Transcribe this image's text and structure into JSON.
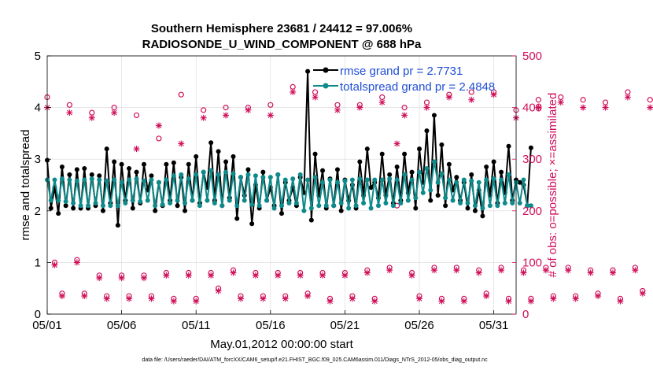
{
  "chart_data": {
    "type": "line",
    "title": "Southern Hemisphere 23681 / 24412 = 97.006%",
    "subtitle": "RADIOSONDE_U_WIND_COMPONENT @ 688 hPa",
    "xlabel": "May.01,2012 00:00:00 start",
    "ylabel": "rmse and totalspread",
    "y2label": "# of obs: o=possible; ×=assimilated",
    "x_ticks": [
      "05/01",
      "05/06",
      "05/11",
      "05/16",
      "05/21",
      "05/26",
      "05/31"
    ],
    "y_ticks": [
      "0",
      "1",
      "2",
      "3",
      "4",
      "5"
    ],
    "y2_ticks": [
      "0",
      "100",
      "200",
      "300",
      "400",
      "500"
    ],
    "xlim": [
      0,
      31.5
    ],
    "ylim": [
      0,
      5
    ],
    "y2lim": [
      0,
      500
    ],
    "grid": true,
    "legend_location": "top-right",
    "colors": {
      "rmse": "#000000",
      "spread": "#0e8a8a",
      "obs": "#d0105a",
      "legend_text": "#1f4fd6"
    },
    "series": [
      {
        "name": "rmse grand pr = 2.7731",
        "axis": "left",
        "x_start": 0,
        "dx": 0.25,
        "values": [
          2.98,
          2.05,
          2.45,
          1.95,
          2.85,
          2.1,
          2.7,
          2.05,
          2.8,
          2.05,
          2.82,
          2.05,
          2.7,
          2.1,
          2.68,
          2.0,
          3.2,
          2.15,
          2.95,
          1.72,
          2.9,
          2.2,
          2.82,
          2.05,
          2.75,
          2.15,
          2.9,
          2.4,
          2.68,
          2.0,
          2.55,
          2.1,
          2.9,
          2.2,
          2.93,
          2.1,
          2.65,
          2.0,
          2.9,
          2.2,
          3.05,
          2.15,
          2.75,
          2.45,
          3.32,
          2.2,
          3.15,
          2.1,
          2.95,
          2.25,
          3.05,
          1.85,
          2.65,
          2.3,
          2.8,
          1.75,
          2.5,
          2.05,
          2.75,
          2.2,
          2.45,
          2.1,
          2.7,
          1.95,
          2.55,
          2.2,
          2.45,
          2.1,
          2.65,
          2.35,
          4.7,
          1.82,
          3.1,
          2.3,
          2.78,
          2.05,
          2.62,
          2.1,
          2.8,
          2.0,
          2.6,
          2.2,
          2.5,
          2.05,
          2.95,
          2.3,
          3.2,
          2.45,
          2.55,
          2.25,
          3.1,
          2.3,
          2.7,
          2.15,
          2.85,
          2.2,
          3.1,
          2.35,
          2.75,
          2.05,
          3.2,
          2.55,
          3.55,
          2.2,
          3.85,
          2.3,
          3.28,
          2.1,
          2.9,
          2.4,
          2.65,
          2.2,
          2.55,
          2.05,
          2.7,
          2.0,
          2.4,
          1.9,
          2.85,
          2.3,
          2.95,
          2.15,
          2.75,
          2.35,
          3.25,
          2.2,
          2.6,
          2.55,
          2.5,
          2.1,
          3.22
        ]
      },
      {
        "name": "totalspread grand pr = 2.4848",
        "axis": "left",
        "x_start": 0,
        "dx": 0.25,
        "values": [
          2.6,
          2.2,
          2.6,
          2.2,
          2.62,
          2.18,
          2.6,
          2.15,
          2.58,
          2.1,
          2.6,
          2.1,
          2.62,
          2.15,
          2.6,
          2.1,
          2.58,
          2.1,
          2.6,
          2.1,
          2.55,
          2.15,
          2.6,
          2.2,
          2.62,
          2.18,
          2.58,
          2.2,
          2.6,
          2.1,
          2.55,
          2.12,
          2.6,
          2.15,
          2.68,
          2.2,
          2.7,
          2.15,
          2.62,
          2.2,
          2.7,
          2.1,
          2.75,
          2.2,
          2.78,
          2.15,
          2.7,
          2.1,
          2.75,
          2.2,
          2.72,
          2.1,
          2.65,
          2.2,
          2.7,
          2.12,
          2.68,
          2.1,
          2.65,
          2.2,
          2.65,
          2.05,
          2.7,
          2.1,
          2.6,
          2.15,
          2.62,
          2.15,
          2.7,
          2.0,
          2.6,
          2.05,
          2.65,
          2.1,
          2.55,
          2.1,
          2.6,
          2.1,
          2.55,
          2.15,
          2.58,
          2.05,
          2.6,
          2.1,
          2.62,
          2.15,
          2.6,
          2.05,
          2.6,
          2.1,
          2.6,
          2.15,
          2.62,
          2.1,
          2.6,
          2.15,
          2.7,
          2.2,
          2.6,
          2.25,
          2.75,
          2.35,
          2.82,
          2.4,
          2.95,
          2.55,
          2.72,
          2.25,
          2.6,
          2.2,
          2.55,
          2.15,
          2.6,
          2.15,
          2.58,
          2.1,
          2.55,
          2.05,
          2.6,
          2.1,
          2.62,
          2.1,
          2.6,
          2.15,
          2.7,
          2.15,
          2.55,
          2.15,
          2.6,
          2.1,
          2.1
        ]
      },
      {
        "name": "possible",
        "axis": "right",
        "marker": "o",
        "x_start": 0,
        "dx": 0.5,
        "values": [
          420,
          100,
          40,
          405,
          105,
          40,
          390,
          75,
          35,
          400,
          75,
          35,
          385,
          75,
          35,
          340,
          80,
          30,
          425,
          80,
          30,
          395,
          80,
          50,
          400,
          85,
          35,
          400,
          80,
          35,
          405,
          80,
          35,
          440,
          80,
          40,
          430,
          80,
          30,
          405,
          80,
          35,
          405,
          85,
          30,
          420,
          90,
          210,
          400,
          80,
          35,
          410,
          90,
          30,
          425,
          90,
          30,
          430,
          85,
          40,
          430,
          90,
          30,
          395,
          85,
          30,
          415,
          90,
          35,
          420,
          90,
          35,
          415,
          85,
          40,
          410,
          85,
          30,
          430,
          90,
          45,
          415,
          95,
          30,
          395,
          100,
          35
        ]
      },
      {
        "name": "assimilated",
        "axis": "right",
        "marker": "*",
        "x_start": 0,
        "dx": 0.5,
        "values": [
          400,
          95,
          35,
          390,
          100,
          35,
          380,
          70,
          30,
          390,
          70,
          30,
          320,
          70,
          30,
          365,
          75,
          25,
          330,
          75,
          25,
          380,
          75,
          45,
          385,
          80,
          30,
          395,
          75,
          30,
          385,
          75,
          30,
          430,
          75,
          35,
          420,
          75,
          25,
          395,
          75,
          30,
          400,
          80,
          25,
          410,
          85,
          330,
          385,
          75,
          30,
          400,
          85,
          25,
          420,
          85,
          25,
          415,
          80,
          35,
          425,
          85,
          25,
          380,
          80,
          25,
          400,
          85,
          30,
          410,
          85,
          30,
          400,
          80,
          35,
          400,
          80,
          25,
          420,
          85,
          40,
          400,
          90,
          25,
          385,
          95,
          30
        ]
      }
    ],
    "footnote": "data file: /Users/raeder/DAI/ATM_forcXX/CAM6_setup/f.e21.FHIST_BGC.f09_025.CAM6assim.011/Diags_NTrS_2012-05/obs_diag_output.nc"
  }
}
